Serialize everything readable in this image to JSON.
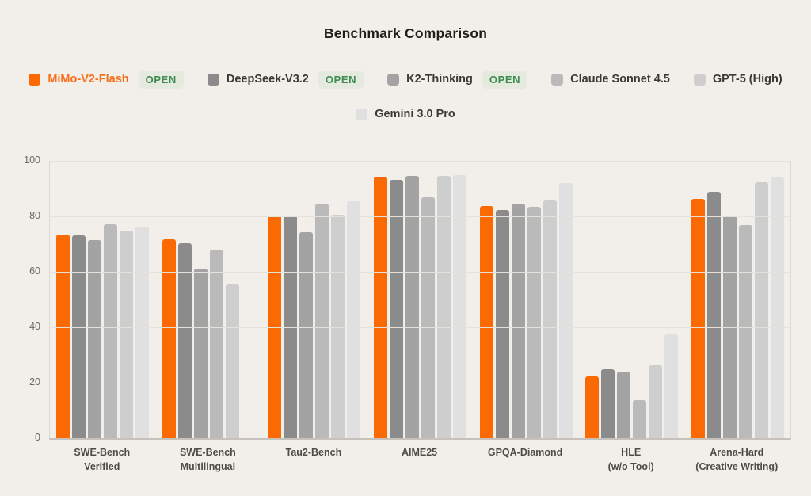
{
  "title": "Benchmark Comparison",
  "legend": {
    "open_label": "OPEN",
    "row_break_index": 5
  },
  "colors": {
    "background": "#f2eee9",
    "grid": "#e6e1db",
    "baseline": "#c6c1bb",
    "accent_orange": "#fb6903",
    "open_badge_bg": "#e4eade",
    "open_badge_text": "#3f8b52"
  },
  "chart_data": {
    "type": "bar",
    "title": "Benchmark Comparison",
    "categories": [
      "SWE-Bench\nVerified",
      "SWE-Bench\nMultilingual",
      "Tau2-Bench",
      "AIME25",
      "GPQA-Diamond",
      "HLE\n(w/o Tool)",
      "Arena-Hard\n(Creative Writing)"
    ],
    "series": [
      {
        "name": "MiMo-V2-Flash",
        "color": "#fb6903",
        "label_color": "#f86f1a",
        "open": true,
        "values": [
          73.4,
          71.7,
          80.2,
          94.3,
          83.7,
          22.2,
          86.3
        ]
      },
      {
        "name": "DeepSeek-V3.2",
        "color": "#8b8b8b",
        "label_color": "#3c3834",
        "open": true,
        "values": [
          73.1,
          70.3,
          80.4,
          93.2,
          82.3,
          25.0,
          88.9
        ]
      },
      {
        "name": "K2-Thinking",
        "color": "#a3a3a3",
        "label_color": "#3c3834",
        "open": true,
        "values": [
          71.3,
          61.1,
          74.3,
          94.5,
          84.5,
          23.9,
          80.2
        ]
      },
      {
        "name": "Claude Sonnet 4.5",
        "color": "#bababa",
        "label_color": "#3c3834",
        "open": false,
        "values": [
          77.2,
          68.0,
          84.7,
          87.0,
          83.4,
          13.7,
          76.8
        ]
      },
      {
        "name": "GPT-5 (High)",
        "color": "#cecece",
        "label_color": "#3c3834",
        "open": false,
        "values": [
          74.9,
          55.3,
          80.5,
          94.6,
          85.7,
          26.3,
          92.4
        ]
      },
      {
        "name": "Gemini 3.0 Pro",
        "color": "#e0e0e0",
        "label_color": "#3c3834",
        "open": false,
        "values": [
          76.2,
          null,
          85.4,
          95.0,
          91.9,
          37.5,
          93.9
        ]
      }
    ],
    "ylim": [
      0,
      100
    ],
    "yticks": [
      0,
      20,
      40,
      60,
      80,
      100
    ],
    "grid": true,
    "legend_position": "top"
  }
}
